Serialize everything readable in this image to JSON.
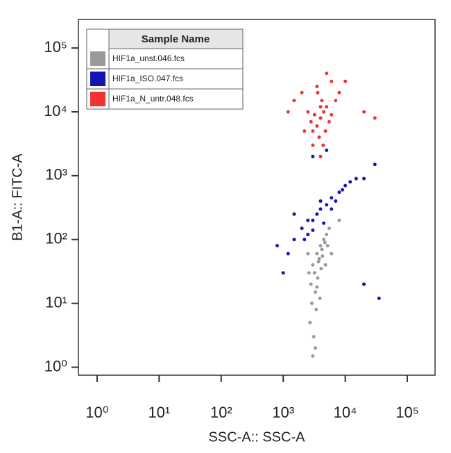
{
  "chart_data": {
    "type": "scatter",
    "xlabel": "SSC-A:: SSC-A",
    "ylabel": "B1-A:: FITC-A",
    "legend_title": "Sample Name",
    "legend": "upper-left",
    "xscale": "log",
    "yscale": "log",
    "xlim": [
      0.5,
      280000
    ],
    "ylim": [
      0.75,
      280000
    ],
    "xticks": [
      {
        "value": 1,
        "label": "10⁰"
      },
      {
        "value": 10,
        "label": "10¹"
      },
      {
        "value": 100,
        "label": "10²"
      },
      {
        "value": 1000,
        "label": "10³"
      },
      {
        "value": 10000,
        "label": "10⁴"
      },
      {
        "value": 100000,
        "label": "10⁵"
      }
    ],
    "yticks": [
      {
        "value": 1,
        "label": "10⁰"
      },
      {
        "value": 10,
        "label": "10¹"
      },
      {
        "value": 100,
        "label": "10²"
      },
      {
        "value": 1000,
        "label": "10³"
      },
      {
        "value": 10000,
        "label": "10⁴"
      },
      {
        "value": 100000,
        "label": "10⁵"
      }
    ],
    "series": [
      {
        "name": "HIF1a_unst.046.fcs",
        "color": "#9a9a9a",
        "x": [
          3000,
          3500,
          4000,
          4500,
          3200,
          2800,
          3800,
          4200,
          5000,
          3300,
          2900,
          3600,
          4100,
          2700,
          3100,
          3400,
          3900,
          5500,
          4700,
          2600,
          3700,
          4300,
          6000,
          3000,
          3300,
          8000,
          2500,
          4800,
          5200,
          3500
        ],
        "values": [
          40,
          60,
          80,
          100,
          30,
          20,
          50,
          70,
          120,
          15,
          10,
          25,
          35,
          5,
          3,
          8,
          12,
          150,
          90,
          30,
          45,
          55,
          60,
          1.5,
          2,
          200,
          60,
          40,
          80,
          18
        ]
      },
      {
        "name": "HIF1a_ISO.047.fcs",
        "color": "#1414b4",
        "x": [
          1500,
          2000,
          2500,
          3000,
          3500,
          4000,
          5000,
          6000,
          8000,
          10000,
          12000,
          15000,
          2500,
          3000,
          4500,
          7000,
          9000,
          20000,
          30000,
          1200,
          1000,
          800,
          20000,
          3000,
          5000,
          1500,
          6000,
          4000,
          2200,
          35000
        ],
        "values": [
          100,
          150,
          200,
          200,
          250,
          300,
          350,
          450,
          550,
          700,
          800,
          900,
          120,
          140,
          180,
          400,
          600,
          900,
          1500,
          60,
          30,
          80,
          20,
          2000,
          2500,
          250,
          300,
          400,
          100,
          12
        ]
      },
      {
        "name": "HIF1a_N_untr.048.fcs",
        "color": "#f03232",
        "x": [
          3500,
          4000,
          4500,
          3000,
          5000,
          3800,
          4200,
          3200,
          5500,
          2800,
          4800,
          3600,
          4400,
          6000,
          2500,
          3000,
          7000,
          2200,
          3500,
          5000,
          8000,
          1500,
          20000,
          1200,
          30000,
          4000,
          6000,
          2000,
          10000,
          4000
        ],
        "values": [
          6000,
          8000,
          10000,
          5000,
          12000,
          4000,
          15000,
          9000,
          7000,
          7000,
          5000,
          20000,
          3000,
          9000,
          10000,
          3000,
          15000,
          5000,
          25000,
          40000,
          20000,
          15000,
          10000,
          10000,
          8000,
          2000,
          30000,
          20000,
          30000,
          12000
        ]
      }
    ]
  }
}
